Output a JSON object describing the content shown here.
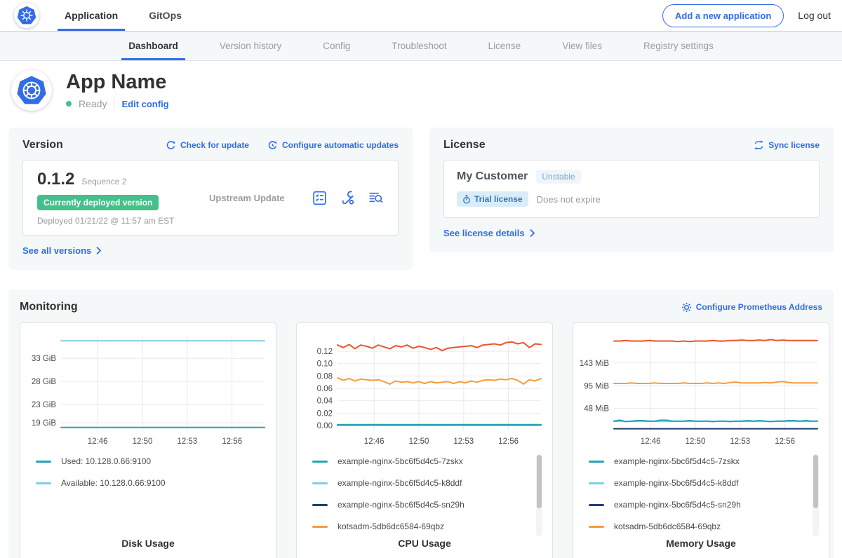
{
  "colors": {
    "accent_blue": "#326de6",
    "success_green": "#44c18a",
    "panel_bg": "#f5f8f9",
    "muted_text": "#9b9b9b",
    "grid_line": "#e8e8e8",
    "series_teal": "#25a3b2",
    "series_light_blue": "#7ecfe3",
    "series_navy": "#213d70",
    "series_orange": "#f79c3d",
    "series_red": "#e8552d"
  },
  "topnav": {
    "tabs": [
      {
        "label": "Application",
        "active": true
      },
      {
        "label": "GitOps",
        "active": false
      }
    ],
    "add_app_button": "Add a new application",
    "logout": "Log out"
  },
  "subnav": {
    "tabs": [
      {
        "label": "Dashboard",
        "active": true
      },
      {
        "label": "Version history",
        "active": false
      },
      {
        "label": "Config",
        "active": false
      },
      {
        "label": "Troubleshoot",
        "active": false
      },
      {
        "label": "License",
        "active": false
      },
      {
        "label": "View files",
        "active": false
      },
      {
        "label": "Registry settings",
        "active": false
      }
    ]
  },
  "app_header": {
    "title": "App Name",
    "status": "Ready",
    "edit_config": "Edit config"
  },
  "version_card": {
    "title": "Version",
    "check_for_update": "Check for update",
    "configure_auto_updates": "Configure automatic updates",
    "version": "0.1.2",
    "sequence": "Sequence 2",
    "deployed_badge": "Currently deployed version",
    "deployed_at": "Deployed 01/21/22 @ 11:57 am EST",
    "update_type": "Upstream Update",
    "see_all_versions": "See all versions"
  },
  "license_card": {
    "title": "License",
    "sync_license": "Sync license",
    "customer": "My Customer",
    "channel": "Unstable",
    "license_type": "Trial license",
    "expiry": "Does not expire",
    "see_license_details": "See license details"
  },
  "monitoring": {
    "title": "Monitoring",
    "configure_prometheus": "Configure Prometheus Address"
  },
  "chart_data": [
    {
      "type": "line",
      "title": "Disk Usage",
      "grid": true,
      "legend_position": "bottom",
      "legend_scrollbar": false,
      "x_ticks": [
        "12:46",
        "12:50",
        "12:53",
        "12:56"
      ],
      "x_tick_pos": [
        0.18,
        0.4,
        0.62,
        0.84
      ],
      "ylim": [
        17.2,
        37.9
      ],
      "y_ticks": [
        {
          "value": 33,
          "label": "33 GiB"
        },
        {
          "value": 28,
          "label": "28 GiB"
        },
        {
          "value": 23,
          "label": "23 GiB"
        },
        {
          "value": 19,
          "label": "19 GiB"
        }
      ],
      "series": [
        {
          "name": "Used: 10.128.0.66:9100",
          "color": "#25a3b2",
          "z": 2,
          "values": [
            18,
            18
          ]
        },
        {
          "name": "Available: 10.128.0.66:9100",
          "color": "#7ecfe3",
          "z": 1,
          "values": [
            36.8,
            36.8
          ]
        }
      ]
    },
    {
      "type": "line",
      "title": "CPU Usage",
      "grid": true,
      "legend_position": "bottom",
      "legend_scrollbar": true,
      "x_ticks": [
        "12:46",
        "12:50",
        "12:53",
        "12:56"
      ],
      "x_tick_pos": [
        0.18,
        0.4,
        0.62,
        0.84
      ],
      "ylim": [
        -0.009,
        0.145
      ],
      "y_ticks": [
        {
          "value": 0.12,
          "label": "0.12"
        },
        {
          "value": 0.1,
          "label": "0.10"
        },
        {
          "value": 0.08,
          "label": "0.08"
        },
        {
          "value": 0.06,
          "label": "0.06"
        },
        {
          "value": 0.04,
          "label": "0.04"
        },
        {
          "value": 0.02,
          "label": "0.02"
        },
        {
          "value": 0.0,
          "label": "0.00"
        }
      ],
      "series": [
        {
          "name": "example-nginx-5bc6f5d4c5-7zskx",
          "color": "#25a3b2",
          "z": 5,
          "values": [
            0.0015,
            0.0015
          ]
        },
        {
          "name": "example-nginx-5bc6f5d4c5-k8ddf",
          "color": "#7ecfe3",
          "z": 3,
          "values": [
            0.0012,
            0.0012
          ]
        },
        {
          "name": "example-nginx-5bc6f5d4c5-sn29h",
          "color": "#213d70",
          "z": 4,
          "values": [
            0.0008,
            0.0008
          ]
        },
        {
          "name": "kotsadm-5db6dc6584-69qbz",
          "color": "#f79c3d",
          "z": 2,
          "values": [
            0.077,
            0.073,
            0.076,
            0.072,
            0.075,
            0.074,
            0.073,
            0.074,
            0.071,
            0.067,
            0.072,
            0.07,
            0.071,
            0.069,
            0.071,
            0.068,
            0.071,
            0.069,
            0.07,
            0.071,
            0.068,
            0.071,
            0.069,
            0.072,
            0.07,
            0.073,
            0.074,
            0.073,
            0.075,
            0.074,
            0.076,
            0.073,
            0.067,
            0.074,
            0.072,
            0.076
          ]
        },
        {
          "name": "",
          "in_legend": false,
          "color": "#e8552d",
          "z": 1,
          "values": [
            0.13,
            0.126,
            0.131,
            0.124,
            0.13,
            0.128,
            0.125,
            0.13,
            0.127,
            0.124,
            0.129,
            0.127,
            0.13,
            0.125,
            0.128,
            0.126,
            0.123,
            0.126,
            0.121,
            0.125,
            0.126,
            0.127,
            0.128,
            0.129,
            0.126,
            0.13,
            0.131,
            0.132,
            0.13,
            0.134,
            0.135,
            0.132,
            0.134,
            0.126,
            0.132,
            0.131
          ]
        }
      ]
    },
    {
      "type": "line",
      "title": "Memory Usage",
      "grid": true,
      "legend_position": "bottom",
      "legend_scrollbar": true,
      "x_ticks": [
        "12:46",
        "12:50",
        "12:53",
        "12:56"
      ],
      "x_tick_pos": [
        0.18,
        0.4,
        0.62,
        0.84
      ],
      "ylim": [
        0,
        200
      ],
      "y_ticks": [
        {
          "value": 143,
          "label": "143 MiB"
        },
        {
          "value": 95,
          "label": "95 MiB"
        },
        {
          "value": 48,
          "label": "48 MiB"
        }
      ],
      "series": [
        {
          "name": "example-nginx-5bc6f5d4c5-7zskx",
          "color": "#25a3b2",
          "z": 5,
          "values": [
            21,
            23,
            20,
            21,
            22,
            22,
            21,
            21,
            23,
            23,
            21,
            21,
            21,
            22,
            21,
            21,
            21,
            20,
            21,
            21,
            20,
            21,
            21,
            22,
            21,
            22,
            21,
            20,
            21,
            21,
            22,
            22,
            21,
            22,
            21,
            21
          ]
        },
        {
          "name": "example-nginx-5bc6f5d4c5-k8ddf",
          "color": "#7ecfe3",
          "z": 3,
          "values": [
            20.5,
            20.5
          ]
        },
        {
          "name": "example-nginx-5bc6f5d4c5-sn29h",
          "color": "#213d70",
          "z": 4,
          "values": [
            5,
            5
          ]
        },
        {
          "name": "kotsadm-5db6dc6584-69qbz",
          "color": "#f79c3d",
          "z": 2,
          "values": [
            100,
            100,
            100,
            101,
            100,
            100,
            100,
            101,
            100,
            100,
            100,
            100,
            101,
            100,
            100,
            100,
            101,
            100,
            101,
            100,
            102,
            103,
            101,
            101,
            101,
            101,
            102,
            101,
            103,
            104,
            102,
            101,
            101,
            101,
            101,
            101
          ]
        },
        {
          "name": "",
          "in_legend": false,
          "color": "#e8552d",
          "z": 1,
          "values": [
            189,
            189,
            190,
            189,
            189,
            189,
            190,
            189,
            189,
            189,
            189,
            188,
            189,
            188,
            189,
            189,
            189,
            190,
            189,
            189,
            190,
            190,
            191,
            190,
            190,
            191,
            190,
            192,
            190,
            191,
            190,
            190,
            190,
            190,
            190,
            190
          ]
        }
      ]
    }
  ]
}
